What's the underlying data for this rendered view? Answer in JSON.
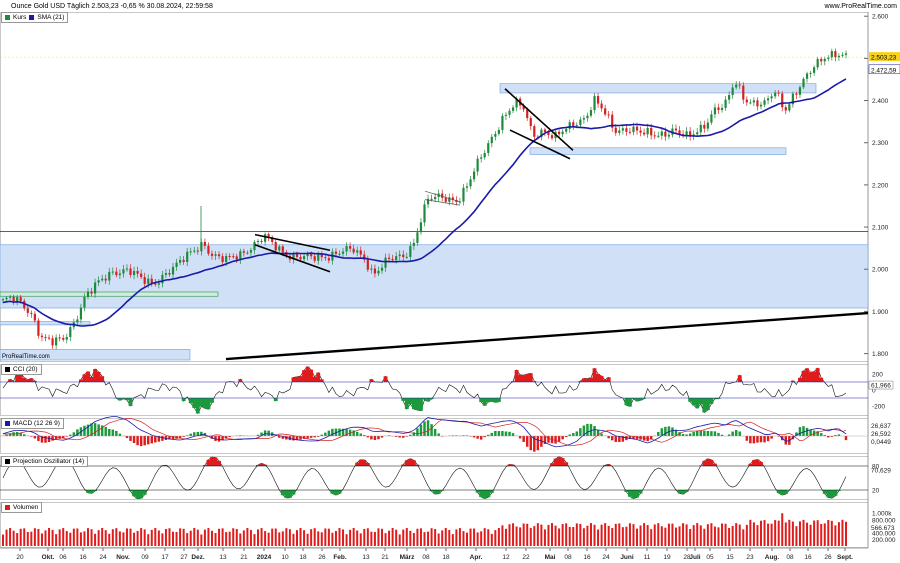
{
  "header": {
    "title": "Ounce Gold USD Täglich 2.503,23 -0,65 % 30.08.2024, 22:59:58",
    "site": "www.ProRealTime.com",
    "watermark": "ProRealTime.com"
  },
  "colors": {
    "up": "#1f8a3b",
    "down": "#d62020",
    "sma": "#1a1aa8",
    "zone": "#cfe0f7",
    "zone_border": "#6f9fe0",
    "positive_fill": "#e01b1b",
    "negative_fill": "#1a9a3a"
  },
  "panels": {
    "price": {
      "legend": [
        "Kurs",
        "SMA (21)"
      ],
      "yticks": [
        "2.600",
        "2.500",
        "2.400",
        "2.300",
        "2.200",
        "2.100",
        "2.000",
        "1.900",
        "1.800"
      ],
      "last_price": "2.503,23",
      "sma_value": "2.472,59"
    },
    "cci": {
      "label": "CCI (20)",
      "yticks": [
        "200",
        "0",
        "-200"
      ],
      "value": "61,966"
    },
    "macd": {
      "label": "MACD (12 26 9)",
      "values": [
        "26,637",
        "26,592",
        "0,0449"
      ]
    },
    "proj": {
      "label": "Projection Oszillator (14)",
      "yticks": [
        "80",
        "20"
      ],
      "value": "70,629"
    },
    "volume": {
      "label": "Volumen",
      "yticks": [
        "1.000k",
        "800.000",
        "400.000",
        "200.000"
      ],
      "value": "566.673"
    }
  },
  "xaxis": {
    "labels": [
      "20",
      "Okt.",
      "06",
      "16",
      "24",
      "Nov.",
      "09",
      "17",
      "27",
      "Dez.",
      "13",
      "21",
      "2024",
      "10",
      "18",
      "26",
      "Feb.",
      "13",
      "21",
      "März",
      "08",
      "18",
      "Apr.",
      "12",
      "22",
      "Mai",
      "08",
      "16",
      "24",
      "Juni",
      "11",
      "19",
      "28",
      "Juli",
      "05",
      "15",
      "23",
      "Aug.",
      "08",
      "16",
      "26",
      "Sept."
    ]
  },
  "chart_data": {
    "type": "line",
    "title": "Ounce Gold USD Täglich",
    "ylim": [
      1780,
      2610
    ],
    "x": [
      "Sep 20",
      "Okt",
      "Nov",
      "Dez",
      "2024",
      "Feb",
      "März",
      "Apr",
      "Mai",
      "Juni",
      "Juli",
      "Aug",
      "Sept"
    ],
    "series": [
      {
        "name": "Kurs",
        "values": [
          1925,
          1830,
          1990,
          2040,
          2050,
          2030,
          2040,
          2240,
          2330,
          2330,
          2390,
          2450,
          2503
        ]
      },
      {
        "name": "SMA (21)",
        "values": [
          1920,
          1880,
          1965,
          2035,
          2040,
          2025,
          2030,
          2190,
          2340,
          2345,
          2360,
          2420,
          2473
        ]
      }
    ]
  }
}
